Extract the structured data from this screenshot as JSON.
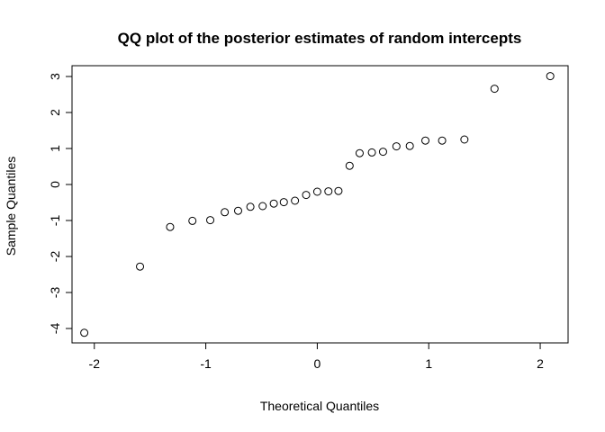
{
  "chart_data": {
    "type": "scatter",
    "title": "QQ plot of the posterior estimates of random intercepts",
    "xlabel": "Theoretical Quantiles",
    "ylabel": "Sample Quantiles",
    "xlim": [
      -2.2,
      2.25
    ],
    "ylim": [
      -4.4,
      3.3
    ],
    "x_ticks": [
      -2,
      -1,
      0,
      1,
      2
    ],
    "y_ticks": [
      -4,
      -3,
      -2,
      -1,
      0,
      1,
      2,
      3
    ],
    "grid": false,
    "legend": "none",
    "marker": "open-circle",
    "points": [
      {
        "x": -2.09,
        "y": -4.12
      },
      {
        "x": -1.59,
        "y": -2.28
      },
      {
        "x": -1.32,
        "y": -1.18
      },
      {
        "x": -1.12,
        "y": -1.01
      },
      {
        "x": -0.96,
        "y": -0.99
      },
      {
        "x": -0.83,
        "y": -0.77
      },
      {
        "x": -0.71,
        "y": -0.73
      },
      {
        "x": -0.6,
        "y": -0.62
      },
      {
        "x": -0.49,
        "y": -0.6
      },
      {
        "x": -0.39,
        "y": -0.53
      },
      {
        "x": -0.3,
        "y": -0.49
      },
      {
        "x": -0.2,
        "y": -0.45
      },
      {
        "x": -0.1,
        "y": -0.29
      },
      {
        "x": 0.0,
        "y": -0.2
      },
      {
        "x": 0.1,
        "y": -0.19
      },
      {
        "x": 0.19,
        "y": -0.18
      },
      {
        "x": 0.29,
        "y": 0.52
      },
      {
        "x": 0.38,
        "y": 0.87
      },
      {
        "x": 0.49,
        "y": 0.89
      },
      {
        "x": 0.59,
        "y": 0.91
      },
      {
        "x": 0.71,
        "y": 1.06
      },
      {
        "x": 0.83,
        "y": 1.07
      },
      {
        "x": 0.97,
        "y": 1.22
      },
      {
        "x": 1.12,
        "y": 1.22
      },
      {
        "x": 1.32,
        "y": 1.25
      },
      {
        "x": 1.59,
        "y": 2.66
      },
      {
        "x": 2.09,
        "y": 3.01
      }
    ]
  }
}
